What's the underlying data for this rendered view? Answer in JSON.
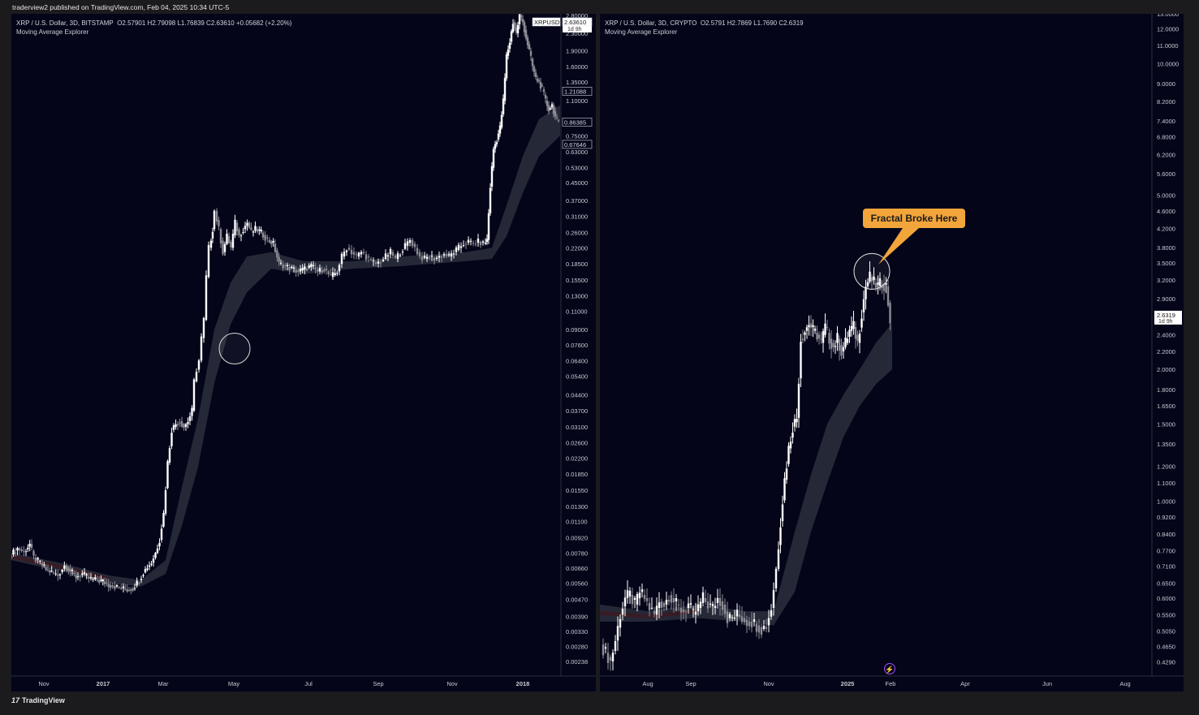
{
  "header": {
    "publisher_line": "traderview2 published on TradingView.com, Feb 04, 2025 10:34 UTC-5"
  },
  "footer": {
    "brand": "TradingView",
    "logo_icon": "tradingview-logo-icon"
  },
  "colors": {
    "background": "#040519",
    "candle_up": "#ffffff",
    "candle_down": "#8c8c94",
    "ma_band": "#2b2f3d",
    "ma_band_red": "#3a1b25",
    "callout": "#f2a53a"
  },
  "left_panel": {
    "legend": {
      "symbol": "XRP / U.S. Dollar, 3D, BITSTAMP",
      "ohlc": "O2.57901  H2.79098  L1.76839  C2.63610  +0.05682 (+2.20%)",
      "indicator": "Moving Average Explorer"
    },
    "price_badge": {
      "ticker": "XRPUSD",
      "price": "2.63610",
      "countdown": "1d 9h"
    },
    "marker_labels": [
      "1.21088",
      "0.86385",
      "0.67646"
    ]
  },
  "right_panel": {
    "legend": {
      "symbol": "XRP / U.S. Dollar, 3D, CRYPTO",
      "ohlc": "O2.5791  H2.7869  L1.7690  C2.6319",
      "indicator": "Moving Average Explorer"
    },
    "price_badge": {
      "price": "2.6319",
      "countdown": "1d 9h"
    },
    "annotation": "Fractal Broke Here",
    "bolt_icon": "lightning-icon"
  },
  "chart_data": [
    {
      "type": "candlestick",
      "title": "XRP / U.S. Dollar, 3D, BITSTAMP",
      "yscale": "log",
      "ylim": [
        0.0021,
        2.85
      ],
      "x_ticks": [
        "Nov",
        "2017",
        "Mar",
        "May",
        "Jul",
        "Sep",
        "Nov",
        "2018"
      ],
      "y_ticks": [
        2.8,
        2.3,
        1.9,
        1.6,
        1.35,
        1.1,
        0.75,
        0.63,
        0.53,
        0.45,
        0.37,
        0.31,
        0.26,
        0.22,
        0.185,
        0.155,
        0.13,
        0.11,
        0.09,
        0.076,
        0.064,
        0.054,
        0.044,
        0.037,
        0.031,
        0.026,
        0.022,
        0.0185,
        0.0155,
        0.013,
        0.011,
        0.0092,
        0.0078,
        0.0066,
        0.0056,
        0.0047,
        0.0039,
        0.0033,
        0.0028,
        0.00238
      ],
      "y_tick_labels": [
        "2.80000",
        "2.30000",
        "1.90000",
        "1.60000",
        "1.35000",
        "1.10000",
        "0.75000",
        "0.63000",
        "0.53000",
        "0.45000",
        "0.37000",
        "0.31000",
        "0.26000",
        "0.22000",
        "0.18500",
        "0.15500",
        "0.13000",
        "0.11000",
        "0.09000",
        "0.07600",
        "0.06400",
        "0.05400",
        "0.04400",
        "0.03700",
        "0.03100",
        "0.02600",
        "0.02200",
        "0.01850",
        "0.01550",
        "0.01300",
        "0.01100",
        "0.00920",
        "0.00780",
        "0.00660",
        "0.00560",
        "0.00470",
        "0.00390",
        "0.00330",
        "0.00280",
        "0.00238"
      ],
      "close_path": [
        [
          0,
          0.0075
        ],
        [
          10,
          0.0082
        ],
        [
          18,
          0.0079
        ],
        [
          25,
          0.0086
        ],
        [
          30,
          0.0074
        ],
        [
          38,
          0.007
        ],
        [
          45,
          0.0065
        ],
        [
          52,
          0.0063
        ],
        [
          60,
          0.0061
        ],
        [
          68,
          0.0068
        ],
        [
          75,
          0.0064
        ],
        [
          82,
          0.006
        ],
        [
          90,
          0.0062
        ],
        [
          98,
          0.0059
        ],
        [
          106,
          0.0058
        ],
        [
          115,
          0.0057
        ],
        [
          122,
          0.0055
        ],
        [
          130,
          0.0054
        ],
        [
          138,
          0.0053
        ],
        [
          145,
          0.0052
        ],
        [
          152,
          0.0053
        ],
        [
          160,
          0.0058
        ],
        [
          165,
          0.0063
        ],
        [
          170,
          0.0067
        ],
        [
          175,
          0.007
        ],
        [
          180,
          0.0078
        ],
        [
          185,
          0.009
        ],
        [
          190,
          0.012
        ],
        [
          195,
          0.021
        ],
        [
          200,
          0.03
        ],
        [
          205,
          0.032
        ],
        [
          210,
          0.033
        ],
        [
          215,
          0.031
        ],
        [
          220,
          0.033
        ],
        [
          225,
          0.037
        ],
        [
          228,
          0.051
        ],
        [
          231,
          0.058
        ],
        [
          234,
          0.064
        ],
        [
          237,
          0.082
        ],
        [
          240,
          0.1
        ],
        [
          243,
          0.16
        ],
        [
          246,
          0.22
        ],
        [
          250,
          0.27
        ],
        [
          253,
          0.33
        ],
        [
          258,
          0.27
        ],
        [
          263,
          0.21
        ],
        [
          268,
          0.25
        ],
        [
          273,
          0.22
        ],
        [
          278,
          0.29
        ],
        [
          283,
          0.25
        ],
        [
          288,
          0.27
        ],
        [
          293,
          0.29
        ],
        [
          298,
          0.26
        ],
        [
          303,
          0.27
        ],
        [
          310,
          0.26
        ],
        [
          318,
          0.24
        ],
        [
          325,
          0.23
        ],
        [
          332,
          0.185
        ],
        [
          340,
          0.18
        ],
        [
          348,
          0.175
        ],
        [
          356,
          0.17
        ],
        [
          364,
          0.175
        ],
        [
          372,
          0.18
        ],
        [
          380,
          0.17
        ],
        [
          388,
          0.175
        ],
        [
          396,
          0.16
        ],
        [
          404,
          0.17
        ],
        [
          410,
          0.2
        ],
        [
          416,
          0.22
        ],
        [
          422,
          0.21
        ],
        [
          428,
          0.2
        ],
        [
          434,
          0.21
        ],
        [
          440,
          0.2
        ],
        [
          446,
          0.19
        ],
        [
          452,
          0.185
        ],
        [
          458,
          0.19
        ],
        [
          464,
          0.2
        ],
        [
          470,
          0.21
        ],
        [
          476,
          0.195
        ],
        [
          482,
          0.21
        ],
        [
          488,
          0.225
        ],
        [
          494,
          0.24
        ],
        [
          500,
          0.22
        ],
        [
          506,
          0.2
        ],
        [
          512,
          0.195
        ],
        [
          518,
          0.2
        ],
        [
          524,
          0.195
        ],
        [
          530,
          0.2
        ],
        [
          536,
          0.205
        ],
        [
          542,
          0.2
        ],
        [
          548,
          0.21
        ],
        [
          554,
          0.22
        ],
        [
          560,
          0.23
        ],
        [
          566,
          0.235
        ],
        [
          572,
          0.23
        ],
        [
          578,
          0.235
        ],
        [
          584,
          0.23
        ],
        [
          588,
          0.24
        ],
        [
          592,
          0.43
        ],
        [
          596,
          0.65
        ],
        [
          600,
          0.72
        ],
        [
          604,
          0.82
        ],
        [
          608,
          1.1
        ],
        [
          612,
          1.8
        ],
        [
          616,
          2.1
        ],
        [
          620,
          2.6
        ],
        [
          624,
          2.3
        ],
        [
          628,
          2.8
        ],
        [
          632,
          2.6
        ],
        [
          636,
          2.2
        ],
        [
          640,
          1.9
        ],
        [
          644,
          1.6
        ],
        [
          648,
          1.4
        ],
        [
          652,
          1.35
        ],
        [
          656,
          1.25
        ],
        [
          660,
          1.1
        ],
        [
          664,
          1.0
        ],
        [
          668,
          1.05
        ],
        [
          672,
          0.92
        ],
        [
          676,
          0.86
        ]
      ],
      "ma_band": [
        [
          0,
          0.0078,
          0.0072
        ],
        [
          60,
          0.007,
          0.0064
        ],
        [
          120,
          0.0061,
          0.0056
        ],
        [
          160,
          0.0058,
          0.0054
        ],
        [
          190,
          0.0072,
          0.0062
        ],
        [
          210,
          0.016,
          0.0105
        ],
        [
          230,
          0.034,
          0.02
        ],
        [
          250,
          0.09,
          0.05
        ],
        [
          270,
          0.15,
          0.095
        ],
        [
          290,
          0.2,
          0.135
        ],
        [
          320,
          0.21,
          0.175
        ],
        [
          360,
          0.19,
          0.165
        ],
        [
          420,
          0.19,
          0.175
        ],
        [
          480,
          0.2,
          0.18
        ],
        [
          560,
          0.21,
          0.19
        ],
        [
          592,
          0.22,
          0.195
        ],
        [
          610,
          0.35,
          0.25
        ],
        [
          630,
          0.6,
          0.4
        ],
        [
          650,
          0.9,
          0.6
        ],
        [
          676,
          1.05,
          0.75
        ]
      ],
      "highlight": {
        "x": 275,
        "y": 0.073
      }
    },
    {
      "type": "candlestick",
      "title": "XRP / U.S. Dollar, 3D, CRYPTO",
      "yscale": "log",
      "ylim": [
        0.405,
        13.0
      ],
      "x_ticks": [
        "Aug",
        "Sep",
        "Nov",
        "2025",
        "Feb",
        "Apr",
        "Jun",
        "Aug"
      ],
      "y_ticks": [
        13.0,
        12.0,
        11.0,
        10.0,
        9.0,
        8.2,
        7.4,
        6.8,
        6.2,
        5.6,
        5.0,
        4.6,
        4.2,
        3.8,
        3.5,
        3.2,
        2.9,
        2.4,
        2.2,
        2.0,
        1.8,
        1.65,
        1.5,
        1.35,
        1.2,
        1.1,
        1.0,
        0.92,
        0.84,
        0.77,
        0.71,
        0.65,
        0.6,
        0.55,
        0.505,
        0.465,
        0.429
      ],
      "y_tick_labels": [
        "13.0000",
        "12.0000",
        "11.0000",
        "10.0000",
        "9.0000",
        "8.2000",
        "7.4000",
        "6.8000",
        "6.2000",
        "5.6000",
        "5.0000",
        "4.6000",
        "4.2000",
        "3.8000",
        "3.5000",
        "3.2000",
        "2.9000",
        "2.4000",
        "2.2000",
        "2.0000",
        "1.8000",
        "1.6500",
        "1.5000",
        "1.3500",
        "1.2000",
        "1.1000",
        "1.0000",
        "0.9200",
        "0.8400",
        "0.7700",
        "0.7100",
        "0.6500",
        "0.6000",
        "0.5500",
        "0.5050",
        "0.4650",
        "0.4290"
      ],
      "close_path": [
        [
          4,
          0.47
        ],
        [
          10,
          0.45
        ],
        [
          16,
          0.43
        ],
        [
          22,
          0.48
        ],
        [
          28,
          0.55
        ],
        [
          34,
          0.6
        ],
        [
          40,
          0.61
        ],
        [
          46,
          0.58
        ],
        [
          52,
          0.62
        ],
        [
          58,
          0.6
        ],
        [
          64,
          0.57
        ],
        [
          70,
          0.55
        ],
        [
          76,
          0.59
        ],
        [
          82,
          0.58
        ],
        [
          88,
          0.61
        ],
        [
          94,
          0.59
        ],
        [
          100,
          0.57
        ],
        [
          106,
          0.56
        ],
        [
          112,
          0.58
        ],
        [
          118,
          0.55
        ],
        [
          124,
          0.57
        ],
        [
          130,
          0.6
        ],
        [
          136,
          0.58
        ],
        [
          142,
          0.57
        ],
        [
          148,
          0.6
        ],
        [
          154,
          0.58
        ],
        [
          160,
          0.54
        ],
        [
          166,
          0.54
        ],
        [
          172,
          0.55
        ],
        [
          178,
          0.54
        ],
        [
          184,
          0.53
        ],
        [
          190,
          0.53
        ],
        [
          196,
          0.52
        ],
        [
          202,
          0.51
        ],
        [
          208,
          0.52
        ],
        [
          214,
          0.57
        ],
        [
          220,
          0.7
        ],
        [
          225,
          0.9
        ],
        [
          230,
          1.12
        ],
        [
          235,
          1.32
        ],
        [
          240,
          1.48
        ],
        [
          245,
          1.55
        ],
        [
          250,
          2.35
        ],
        [
          255,
          2.45
        ],
        [
          260,
          2.55
        ],
        [
          265,
          2.45
        ],
        [
          270,
          2.4
        ],
        [
          275,
          2.3
        ],
        [
          280,
          2.5
        ],
        [
          285,
          2.35
        ],
        [
          290,
          2.25
        ],
        [
          295,
          2.35
        ],
        [
          300,
          2.2
        ],
        [
          305,
          2.3
        ],
        [
          310,
          2.45
        ],
        [
          315,
          2.5
        ],
        [
          320,
          2.3
        ],
        [
          325,
          2.7
        ],
        [
          330,
          3.1
        ],
        [
          335,
          3.25
        ],
        [
          340,
          3.15
        ],
        [
          345,
          3.1
        ],
        [
          350,
          3.15
        ],
        [
          355,
          3.1
        ],
        [
          360,
          2.6
        ]
      ],
      "ma_band": [
        [
          0,
          0.58,
          0.53
        ],
        [
          60,
          0.56,
          0.53
        ],
        [
          120,
          0.58,
          0.54
        ],
        [
          180,
          0.56,
          0.53
        ],
        [
          214,
          0.56,
          0.52
        ],
        [
          240,
          0.85,
          0.62
        ],
        [
          260,
          1.15,
          0.85
        ],
        [
          280,
          1.5,
          1.1
        ],
        [
          300,
          1.75,
          1.4
        ],
        [
          320,
          2.0,
          1.65
        ],
        [
          340,
          2.3,
          1.85
        ],
        [
          360,
          2.55,
          2.0
        ]
      ],
      "highlight": {
        "x": 335,
        "y": 3.35
      }
    }
  ]
}
